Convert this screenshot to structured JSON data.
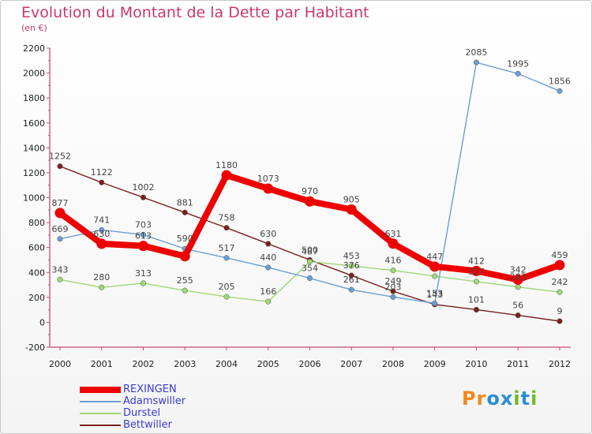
{
  "title": "Evolution du Montant de la Dette par Habitant",
  "subtitle": "(en €)",
  "logo": {
    "text": "Proxiti",
    "letters": [
      "P",
      "r",
      "o",
      "x",
      "i",
      "t",
      "i"
    ],
    "colors": [
      "#f08a1c",
      "#f08a1c",
      "#2a8ed6",
      "#2a8ed6",
      "#73b72b",
      "#2a8ed6",
      "#73b72b"
    ]
  },
  "chart_data": {
    "type": "line",
    "title": "Evolution du Montant de la Dette par Habitant",
    "subtitle": "(en €)",
    "xlabel": "",
    "ylabel": "",
    "x": [
      "2000",
      "2001",
      "2002",
      "2003",
      "2004",
      "2005",
      "2006",
      "2007",
      "2008",
      "2009",
      "2010",
      "2011",
      "2012"
    ],
    "ylim": [
      -200,
      2200
    ],
    "yticks": [
      -200,
      0,
      200,
      400,
      600,
      800,
      1000,
      1200,
      1400,
      1600,
      1800,
      2000,
      2200
    ],
    "grid": false,
    "legend": "bottom-left",
    "series": [
      {
        "name": "REXINGEN",
        "color": "#ee0000",
        "width": 8,
        "dot": 6.5,
        "values": [
          877,
          630,
          613,
          530,
          1180,
          1073,
          970,
          905,
          631,
          447,
          412,
          342,
          459
        ],
        "labels": [
          "877",
          "630",
          "613",
          "",
          "1180",
          "1073",
          "970",
          "905",
          "631",
          "447",
          "412",
          "342",
          "459"
        ]
      },
      {
        "name": "Adamswiller",
        "color": "#6b9ed4",
        "width": 1.4,
        "dot": 3.3,
        "values": [
          669,
          741,
          703,
          590,
          517,
          440,
          354,
          261,
          203,
          153,
          2085,
          1995,
          1856
        ],
        "labels": [
          "669",
          "741",
          "703",
          "590",
          "517",
          "440",
          "354",
          "261",
          "203",
          "153",
          "2085",
          "1995",
          "1856"
        ]
      },
      {
        "name": "Durstel",
        "color": "#9ed876",
        "width": 1.4,
        "dot": 3.3,
        "values": [
          343,
          280,
          313,
          255,
          205,
          166,
          487,
          453,
          416,
          370,
          327,
          283,
          242
        ],
        "labels": [
          "343",
          "280",
          "313",
          "255",
          "205",
          "166",
          "487",
          "453",
          "416",
          "",
          "327",
          "283",
          "242"
        ]
      },
      {
        "name": "Bettwiller",
        "color": "#7a2020",
        "width": 1.4,
        "dot": 3.3,
        "values": [
          1252,
          1122,
          1002,
          881,
          758,
          630,
          500,
          376,
          249,
          143,
          101,
          56,
          9
        ],
        "labels": [
          "1252",
          "1122",
          "1002",
          "881",
          "758",
          "630",
          "500",
          "376",
          "249",
          "143",
          "101",
          "56",
          "9"
        ]
      }
    ]
  }
}
